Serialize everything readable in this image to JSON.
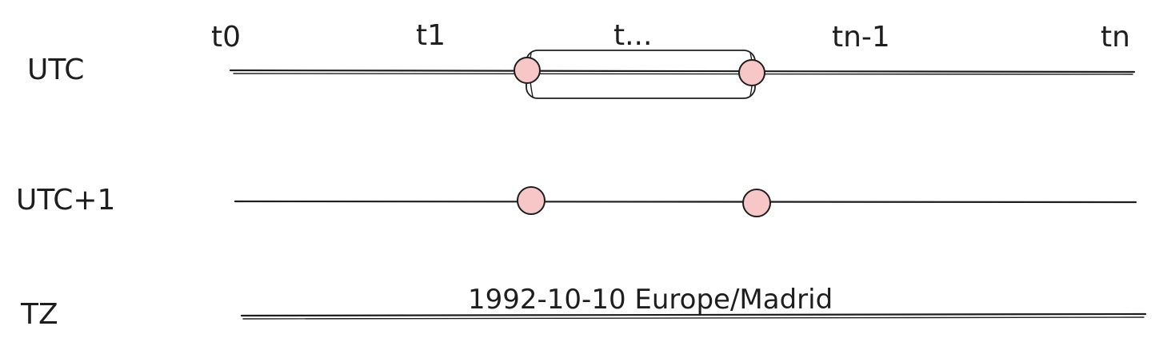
{
  "diagram": {
    "rows": [
      {
        "id": "utc",
        "label": "UTC"
      },
      {
        "id": "utc1",
        "label": "UTC+1"
      },
      {
        "id": "tz",
        "label": "TZ"
      }
    ],
    "ticks": [
      "t0",
      "t1",
      "t...",
      "tn-1",
      "tn"
    ],
    "tz_caption": "1992-10-10 Europe/Madrid",
    "colors": {
      "stroke": "#1e1e1e",
      "event_fill": "#f7c6c6",
      "background": "#ffffff"
    }
  }
}
